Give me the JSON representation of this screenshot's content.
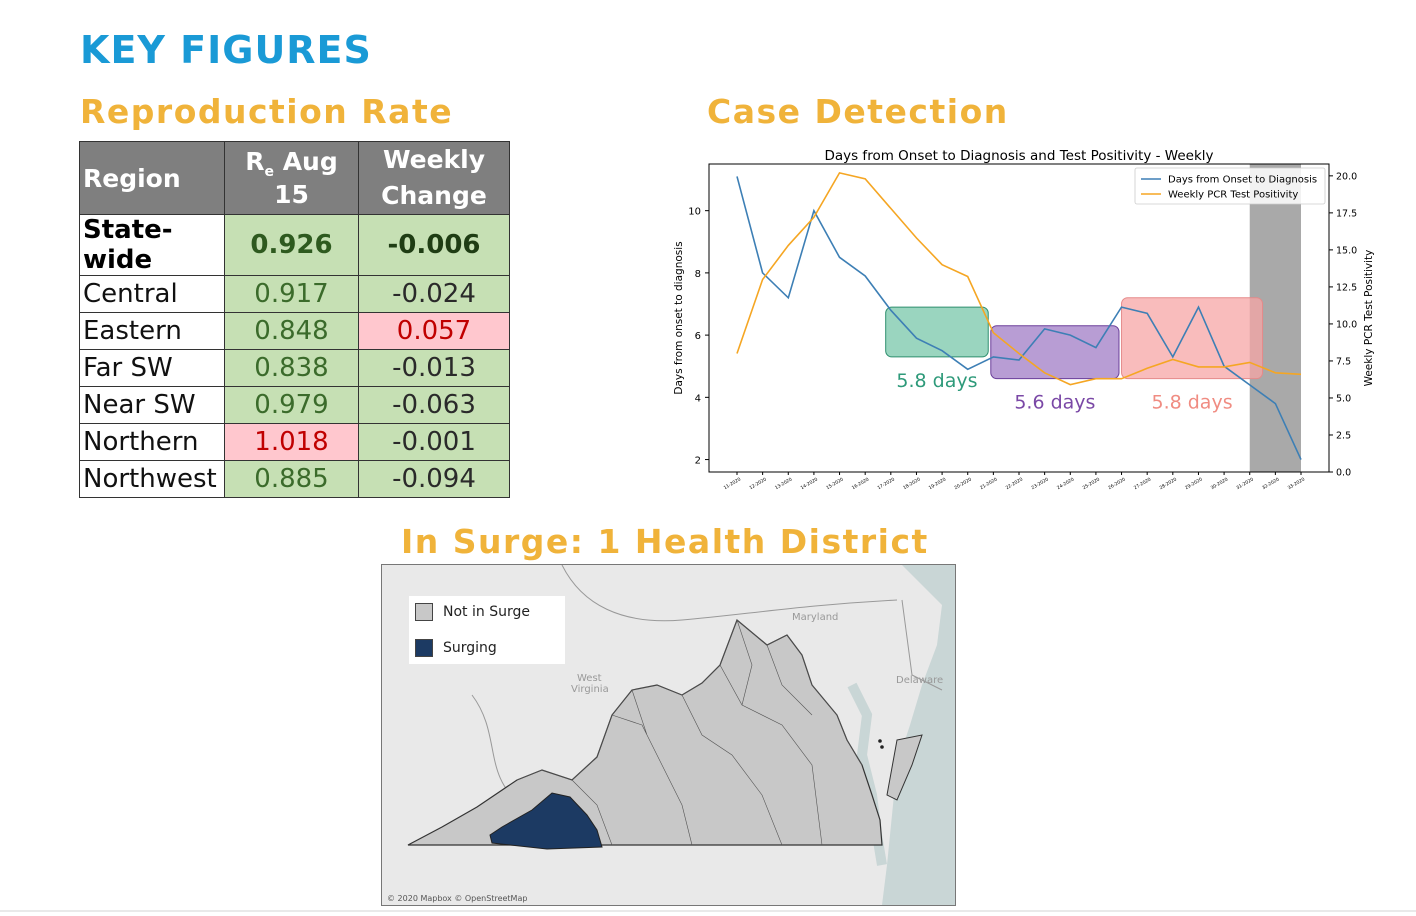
{
  "page_title": "KEY FIGURES",
  "reproduction": {
    "heading": "Reproduction Rate",
    "header_region": "Region",
    "header_re_main": "R",
    "header_re_sub": "e",
    "header_re_date": " Aug 15",
    "header_change_l1": "Weekly",
    "header_change_l2": "Change",
    "rows": [
      {
        "region": "State-wide",
        "re": "0.926",
        "change": "-0.006"
      },
      {
        "region": "Central",
        "re": "0.917",
        "change": "-0.024"
      },
      {
        "region": "Eastern",
        "re": "0.848",
        "change": "0.057"
      },
      {
        "region": "Far SW",
        "re": "0.838",
        "change": "-0.013"
      },
      {
        "region": "Near SW",
        "re": "0.979",
        "change": "-0.063"
      },
      {
        "region": "Northern",
        "re": "1.018",
        "change": "-0.001"
      },
      {
        "region": "Northwest",
        "re": "0.885",
        "change": "-0.094"
      }
    ]
  },
  "case_detection": {
    "heading": "Case Detection"
  },
  "chart_data": {
    "type": "line",
    "title": "Days from Onset to Diagnosis and Test Positivity - Weekly",
    "ylabel": "Days from onset to diagnosis",
    "y2label": "Weekly PCR Test Positivity",
    "ylim": [
      1.6,
      11.5
    ],
    "y2lim": [
      0,
      20.8
    ],
    "yticks": [
      2,
      4,
      6,
      8,
      10
    ],
    "y2ticks": [
      "0.0",
      "2.5",
      "5.0",
      "7.5",
      "10.0",
      "12.5",
      "15.0",
      "17.5",
      "20.0"
    ],
    "categories": [
      "11-2020",
      "12-2020",
      "13-2020",
      "14-2020",
      "15-2020",
      "16-2020",
      "17-2020",
      "18-2020",
      "19-2020",
      "20-2020",
      "21-2020",
      "22-2020",
      "23-2020",
      "24-2020",
      "25-2020",
      "26-2020",
      "27-2020",
      "28-2020",
      "29-2020",
      "30-2020",
      "31-2020",
      "32-2020",
      "33-2020"
    ],
    "legend_position": "top-right",
    "series": [
      {
        "name": "Days from Onset to Diagnosis",
        "axis": "left",
        "color": "#3d7fb5",
        "values": [
          11.1,
          8.0,
          7.2,
          10.0,
          8.5,
          7.9,
          6.8,
          5.9,
          5.5,
          4.9,
          5.3,
          5.2,
          6.2,
          6.0,
          5.6,
          6.9,
          6.7,
          5.3,
          6.9,
          5.0,
          4.4,
          3.8,
          2.0
        ]
      },
      {
        "name": "Weekly PCR Test Positivity",
        "axis": "right",
        "color": "#f5a623",
        "values": [
          8.0,
          13.0,
          15.3,
          17.2,
          20.2,
          19.8,
          17.8,
          15.8,
          14.0,
          13.2,
          9.4,
          8.0,
          6.7,
          5.9,
          6.3,
          6.3,
          7.0,
          7.6,
          7.1,
          7.1,
          7.4,
          6.7,
          6.6
        ]
      }
    ],
    "shaded_region": {
      "from": 20.0,
      "to": 22.0,
      "color": "#a9a9a9"
    },
    "annotations": [
      {
        "from": 5.8,
        "to": 9.8,
        "y_low": 5.3,
        "y_high": 6.9,
        "label": "5.8 days",
        "fill": "#78c7a9",
        "stroke": "#2e8f6e",
        "label_color": "#2e9a7a"
      },
      {
        "from": 9.9,
        "to": 14.9,
        "y_low": 4.6,
        "y_high": 6.3,
        "label": "5.6 days",
        "fill": "#a07cc5",
        "stroke": "#6b3f9a",
        "label_color": "#7a48a6"
      },
      {
        "from": 15.0,
        "to": 20.5,
        "y_low": 4.6,
        "y_high": 7.2,
        "label": "5.8 days",
        "fill": "#f7a5a5",
        "stroke": "#e58a8a",
        "label_color": "#f08c82"
      }
    ]
  },
  "surge": {
    "heading": "In Surge: 1 Health District",
    "legend": [
      {
        "label": "Not in Surge",
        "color": "#c8c8c8"
      },
      {
        "label": "Surging",
        "color": "#1c3a63"
      }
    ],
    "map_labels": {
      "maryland": "Maryland",
      "west": "West",
      "virginia": "Virginia",
      "delaware": "Delaware"
    },
    "credit": "© 2020 Mapbox © OpenStreetMap"
  }
}
